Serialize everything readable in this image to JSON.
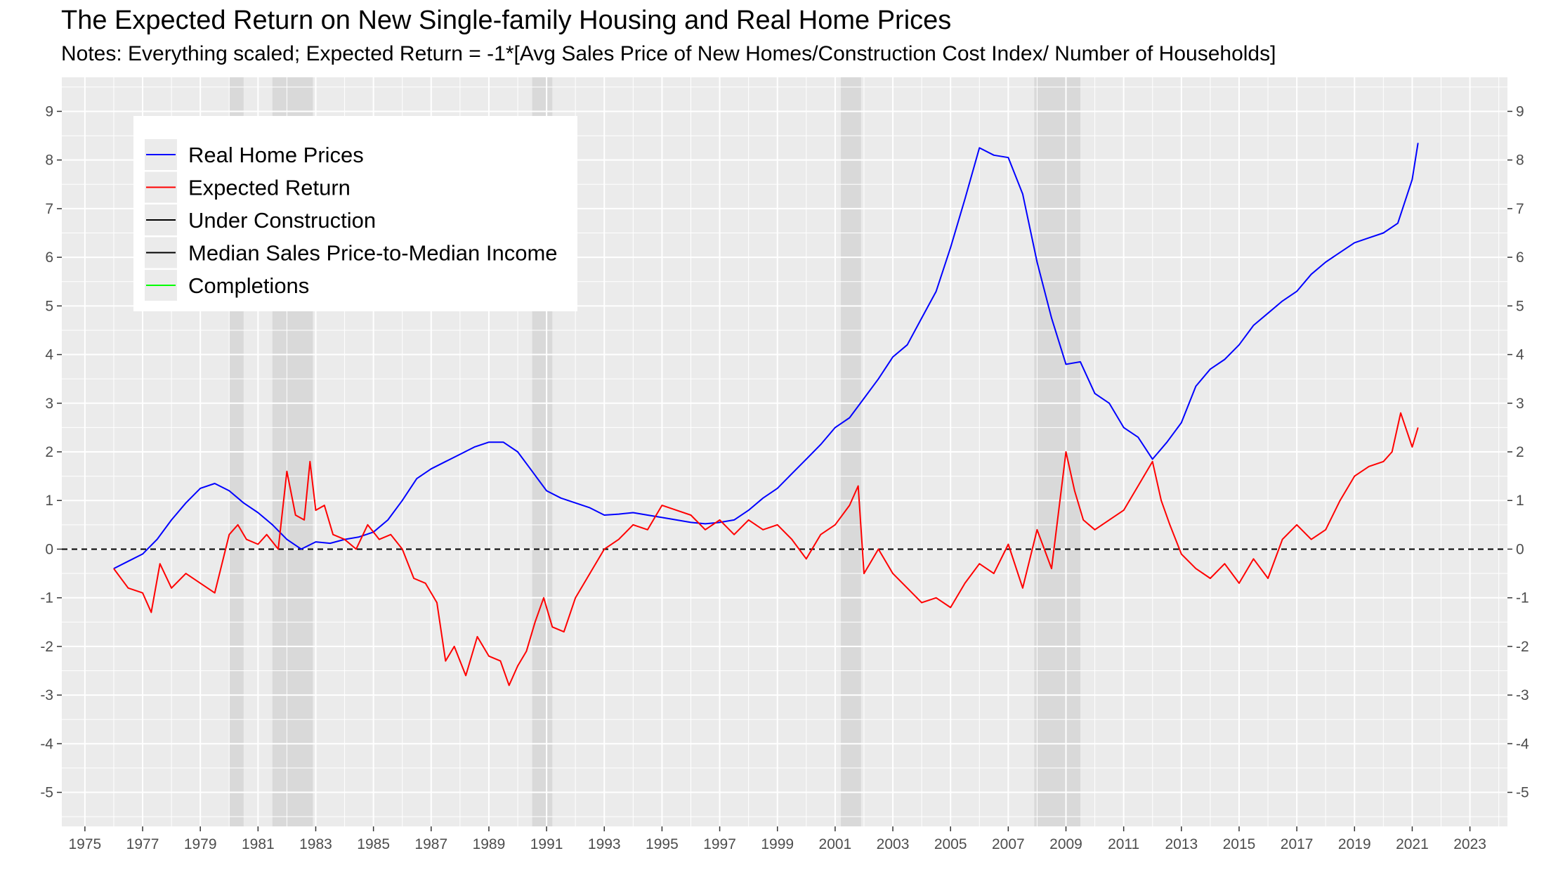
{
  "chart_data": {
    "type": "line",
    "title": "The Expected Return on New Single-family Housing and Real Home Prices",
    "subtitle": "Notes: Everything scaled; Expected Return = -1*[Avg Sales Price of New Homes/Construction Cost Index/ Number of Households]",
    "xlim": [
      1974.2,
      2024.3
    ],
    "ylim": [
      -5.7,
      9.7
    ],
    "x_ticks": [
      1975,
      1977,
      1979,
      1981,
      1983,
      1985,
      1987,
      1989,
      1991,
      1993,
      1995,
      1997,
      1999,
      2001,
      2003,
      2005,
      2007,
      2009,
      2011,
      2013,
      2015,
      2017,
      2019,
      2021,
      2023
    ],
    "y_ticks": [
      -5,
      -4,
      -3,
      -2,
      -1,
      0,
      1,
      2,
      3,
      4,
      5,
      6,
      7,
      8,
      9
    ],
    "grid": true,
    "reference_line": {
      "y": 0,
      "style": "dashed"
    },
    "recessions": [
      [
        1980.0,
        1980.5
      ],
      [
        1981.5,
        1982.9
      ],
      [
        1990.5,
        1991.2
      ],
      [
        2001.2,
        2001.9
      ],
      [
        2007.9,
        2009.5
      ]
    ],
    "legend": {
      "position": "top-left",
      "entries": [
        {
          "label": "Real Home Prices",
          "color": "#0000ff"
        },
        {
          "label": "Expected Return",
          "color": "#ff0000"
        },
        {
          "label": "Under Construction",
          "color": "#000000"
        },
        {
          "label": "Median Sales Price-to-Median Income",
          "color": "#000000"
        },
        {
          "label": "Completions",
          "color": "#00ff00"
        }
      ]
    },
    "series": [
      {
        "name": "Real Home Prices",
        "color": "#0000ff",
        "x": [
          1976.0,
          1976.5,
          1977.0,
          1977.5,
          1978.0,
          1978.5,
          1979.0,
          1979.5,
          1980.0,
          1980.5,
          1981.0,
          1981.5,
          1982.0,
          1982.5,
          1983.0,
          1983.5,
          1984.0,
          1984.5,
          1985.0,
          1985.5,
          1986.0,
          1986.5,
          1987.0,
          1987.5,
          1988.0,
          1988.5,
          1989.0,
          1989.5,
          1990.0,
          1990.5,
          1991.0,
          1991.5,
          1992.0,
          1992.5,
          1993.0,
          1993.5,
          1994.0,
          1994.5,
          1995.0,
          1995.5,
          1996.0,
          1996.5,
          1997.0,
          1997.5,
          1998.0,
          1998.5,
          1999.0,
          1999.5,
          2000.0,
          2000.5,
          2001.0,
          2001.5,
          2002.0,
          2002.5,
          2003.0,
          2003.5,
          2004.0,
          2004.5,
          2005.0,
          2005.5,
          2006.0,
          2006.5,
          2007.0,
          2007.5,
          2008.0,
          2008.5,
          2009.0,
          2009.5,
          2010.0,
          2010.5,
          2011.0,
          2011.5,
          2012.0,
          2012.5,
          2013.0,
          2013.5,
          2014.0,
          2014.5,
          2015.0,
          2015.5,
          2016.0,
          2016.5,
          2017.0,
          2017.5,
          2018.0,
          2018.5,
          2019.0,
          2019.5,
          2020.0,
          2020.5,
          2021.0,
          2021.2
        ],
        "values": [
          -0.4,
          -0.25,
          -0.1,
          0.2,
          0.6,
          0.95,
          1.25,
          1.35,
          1.2,
          0.95,
          0.75,
          0.5,
          0.2,
          0.0,
          0.15,
          0.12,
          0.2,
          0.25,
          0.35,
          0.6,
          1.0,
          1.45,
          1.65,
          1.8,
          1.95,
          2.1,
          2.2,
          2.2,
          2.0,
          1.6,
          1.2,
          1.05,
          0.95,
          0.85,
          0.7,
          0.72,
          0.75,
          0.7,
          0.65,
          0.6,
          0.55,
          0.52,
          0.55,
          0.6,
          0.8,
          1.05,
          1.25,
          1.55,
          1.85,
          2.15,
          2.5,
          2.7,
          3.1,
          3.5,
          3.95,
          4.2,
          4.75,
          5.3,
          6.2,
          7.2,
          8.25,
          8.1,
          8.05,
          7.3,
          5.9,
          4.75,
          3.8,
          3.85,
          3.2,
          3.0,
          2.5,
          2.3,
          1.85,
          2.2,
          2.6,
          3.35,
          3.7,
          3.9,
          4.2,
          4.6,
          4.85,
          5.1,
          5.3,
          5.65,
          5.9,
          6.1,
          6.3,
          6.4,
          6.5,
          6.7,
          7.6,
          8.35
        ]
      },
      {
        "name": "Expected Return",
        "color": "#ff0000",
        "x": [
          1976.0,
          1976.5,
          1977.0,
          1977.3,
          1977.6,
          1978.0,
          1978.5,
          1979.0,
          1979.5,
          1980.0,
          1980.3,
          1980.6,
          1981.0,
          1981.3,
          1981.7,
          1982.0,
          1982.3,
          1982.6,
          1982.8,
          1983.0,
          1983.3,
          1983.6,
          1984.0,
          1984.4,
          1984.8,
          1985.2,
          1985.6,
          1986.0,
          1986.4,
          1986.8,
          1987.2,
          1987.5,
          1987.8,
          1988.2,
          1988.6,
          1989.0,
          1989.4,
          1989.7,
          1990.0,
          1990.3,
          1990.6,
          1990.9,
          1991.2,
          1991.6,
          1992.0,
          1992.5,
          1993.0,
          1993.5,
          1994.0,
          1994.5,
          1995.0,
          1995.5,
          1996.0,
          1996.5,
          1997.0,
          1997.5,
          1998.0,
          1998.5,
          1999.0,
          1999.5,
          2000.0,
          2000.5,
          2001.0,
          2001.5,
          2001.8,
          2002.0,
          2002.5,
          2003.0,
          2003.5,
          2004.0,
          2004.5,
          2005.0,
          2005.5,
          2006.0,
          2006.5,
          2007.0,
          2007.5,
          2008.0,
          2008.5,
          2009.0,
          2009.3,
          2009.6,
          2010.0,
          2010.5,
          2011.0,
          2011.5,
          2012.0,
          2012.3,
          2012.6,
          2013.0,
          2013.5,
          2014.0,
          2014.5,
          2015.0,
          2015.5,
          2016.0,
          2016.5,
          2017.0,
          2017.5,
          2018.0,
          2018.5,
          2019.0,
          2019.5,
          2020.0,
          2020.3,
          2020.6,
          2021.0,
          2021.2
        ],
        "values": [
          -0.4,
          -0.8,
          -0.9,
          -1.3,
          -0.3,
          -0.8,
          -0.5,
          -0.7,
          -0.9,
          0.3,
          0.5,
          0.2,
          0.1,
          0.3,
          0.0,
          1.6,
          0.7,
          0.6,
          1.8,
          0.8,
          0.9,
          0.3,
          0.2,
          0.0,
          0.5,
          0.2,
          0.3,
          0.0,
          -0.6,
          -0.7,
          -1.1,
          -2.3,
          -2.0,
          -2.6,
          -1.8,
          -2.2,
          -2.3,
          -2.8,
          -2.4,
          -2.1,
          -1.5,
          -1.0,
          -1.6,
          -1.7,
          -1.0,
          -0.5,
          0.0,
          0.2,
          0.5,
          0.4,
          0.9,
          0.8,
          0.7,
          0.4,
          0.6,
          0.3,
          0.6,
          0.4,
          0.5,
          0.2,
          -0.2,
          0.3,
          0.5,
          0.9,
          1.3,
          -0.5,
          0.0,
          -0.5,
          -0.8,
          -1.1,
          -1.0,
          -1.2,
          -0.7,
          -0.3,
          -0.5,
          0.1,
          -0.8,
          0.4,
          -0.4,
          2.0,
          1.2,
          0.6,
          0.4,
          0.6,
          0.8,
          1.3,
          1.8,
          1.0,
          0.5,
          -0.1,
          -0.4,
          -0.6,
          -0.3,
          -0.7,
          -0.2,
          -0.6,
          0.2,
          0.5,
          0.2,
          0.4,
          1.0,
          1.5,
          1.7,
          1.8,
          2.0,
          2.8,
          2.1,
          2.5
        ]
      }
    ]
  }
}
